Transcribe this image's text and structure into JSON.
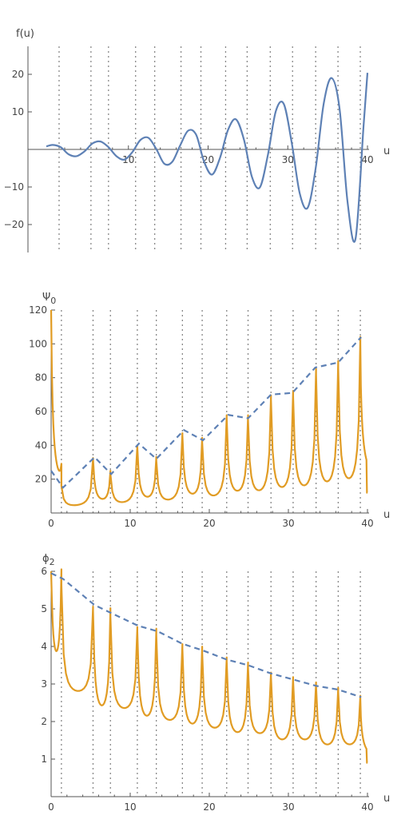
{
  "chart_data": [
    {
      "type": "line",
      "ylabel": "f(u)",
      "xlabel": "u",
      "xlim": [
        -3,
        40.5
      ],
      "ylim": [
        -28,
        28
      ],
      "xticks": [
        {
          "value": 10,
          "label": "10"
        },
        {
          "value": 20,
          "label": "20"
        },
        {
          "value": 30,
          "label": "30"
        },
        {
          "value": 40,
          "label": "40"
        }
      ],
      "yticks": [
        {
          "value": -20,
          "label": "−20"
        },
        {
          "value": -10,
          "label": "−10"
        },
        {
          "value": 10,
          "label": "10"
        },
        {
          "value": 20,
          "label": "20"
        }
      ],
      "vertical_dotted_lines": [
        1.3,
        5.3,
        7.5,
        10.9,
        13.3,
        16.6,
        19.1,
        22.2,
        24.9,
        27.8,
        30.6,
        33.5,
        36.3,
        39.1
      ],
      "series": [
        {
          "style": "solid",
          "color": "#5e81b5",
          "x": [
            -0.3,
            0.5,
            1.5,
            2.5,
            3.5,
            4.5,
            5.5,
            6.5,
            7.5,
            8.5,
            9.5,
            10.5,
            11.5,
            12.5,
            13.5,
            14.5,
            15.5,
            16.5,
            17.5,
            18.5,
            19.5,
            20.5,
            21.5,
            22.5,
            23.5,
            24.5,
            25.5,
            26.5,
            27.5,
            28.5,
            29.5,
            30.5,
            31.5,
            32.5,
            33.5,
            34.5,
            35.5,
            36.5,
            37.5,
            38.5,
            39.5,
            40.0
          ],
          "y": [
            0.8,
            1.2,
            0.6,
            -1.3,
            -1.8,
            -0.5,
            1.6,
            2.1,
            0.6,
            -1.8,
            -2.7,
            -0.7,
            2.5,
            3.1,
            0.1,
            -3.8,
            -3.3,
            1.1,
            5.0,
            3.9,
            -3.3,
            -6.7,
            -2.2,
            5.2,
            8.0,
            2.6,
            -7.3,
            -10.1,
            -1.5,
            10.2,
            12.1,
            1.7,
            -11.7,
            -15.5,
            -5.0,
            12.1,
            19.0,
            10.8,
            -14.0,
            -23.8,
            6.0,
            20.4
          ]
        }
      ]
    },
    {
      "type": "line",
      "ylabel": "Ψ",
      "ylabel_sub": "0",
      "xlabel": "u",
      "xlim": [
        -0.8,
        40.5
      ],
      "ylim": [
        0,
        120
      ],
      "xticks": [
        {
          "value": 0,
          "label": "0"
        },
        {
          "value": 10,
          "label": "10"
        },
        {
          "value": 20,
          "label": "20"
        },
        {
          "value": 30,
          "label": "30"
        },
        {
          "value": 40,
          "label": "40"
        }
      ],
      "yticks": [
        {
          "value": 20,
          "label": "20"
        },
        {
          "value": 40,
          "label": "40"
        },
        {
          "value": 60,
          "label": "60"
        },
        {
          "value": 80,
          "label": "80"
        },
        {
          "value": 100,
          "label": "100"
        },
        {
          "value": 120,
          "label": "120"
        }
      ],
      "vertical_dotted_lines": [
        1.3,
        5.3,
        7.5,
        10.9,
        13.3,
        16.6,
        19.1,
        22.2,
        24.9,
        27.8,
        30.6,
        33.5,
        36.3,
        39.1
      ],
      "series": [
        {
          "style": "dashed",
          "color": "#5e81b5",
          "x": [
            0,
            1.5,
            5.5,
            7.6,
            11.1,
            13.3,
            16.8,
            19.2,
            22.4,
            24.9,
            27.8,
            30.5,
            33.4,
            36.3,
            39.2
          ],
          "y": [
            25,
            15,
            33,
            23,
            41,
            32,
            49,
            43,
            58,
            56,
            70,
            71,
            86,
            89,
            104
          ]
        }
      ],
      "spikes": {
        "color": "#e19c24",
        "positions": [
          0,
          1.3,
          5.3,
          7.5,
          10.9,
          13.3,
          16.6,
          19.1,
          22.2,
          24.9,
          27.8,
          30.6,
          33.5,
          36.3,
          39.1
        ],
        "peaks": [
          120,
          16,
          32,
          23,
          39,
          31,
          46,
          42,
          56,
          55,
          67,
          69,
          82,
          86,
          100
        ],
        "troughs": [
          3,
          1.5,
          1.5,
          1.5,
          1.5,
          1.5,
          1.5,
          1.5,
          1.5,
          1.5,
          1.5,
          1.5,
          1.5,
          1.5,
          12
        ]
      }
    },
    {
      "type": "line",
      "ylabel": "ϕ",
      "ylabel_sub": "2",
      "xlabel": "u",
      "xlim": [
        -0.8,
        40.5
      ],
      "ylim": [
        0,
        6
      ],
      "xticks": [
        {
          "value": 0,
          "label": "0"
        },
        {
          "value": 10,
          "label": "10"
        },
        {
          "value": 20,
          "label": "20"
        },
        {
          "value": 30,
          "label": "30"
        },
        {
          "value": 40,
          "label": "40"
        }
      ],
      "yticks": [
        {
          "value": 1,
          "label": "1"
        },
        {
          "value": 2,
          "label": "2"
        },
        {
          "value": 3,
          "label": "3"
        },
        {
          "value": 4,
          "label": "4"
        },
        {
          "value": 5,
          "label": "5"
        },
        {
          "value": 6,
          "label": "6"
        }
      ],
      "vertical_dotted_lines": [
        1.3,
        5.3,
        7.5,
        10.9,
        13.3,
        16.6,
        19.1,
        22.2,
        24.9,
        27.8,
        30.6,
        33.5,
        36.3,
        39.1
      ],
      "series": [
        {
          "style": "dashed",
          "color": "#5e81b5",
          "x": [
            0,
            1.5,
            5.5,
            7.5,
            11,
            13.5,
            16.6,
            19.1,
            22.2,
            24.9,
            27.8,
            30.6,
            33.5,
            36.3,
            39.2
          ],
          "y": [
            5.95,
            5.8,
            5.1,
            4.9,
            4.55,
            4.4,
            4.07,
            3.9,
            3.65,
            3.5,
            3.28,
            3.12,
            2.95,
            2.85,
            2.65
          ]
        }
      ],
      "spikes": {
        "color": "#e19c24",
        "positions": [
          0,
          1.3,
          5.3,
          7.5,
          10.9,
          13.3,
          16.6,
          19.1,
          22.2,
          24.9,
          27.8,
          30.6,
          33.5,
          36.3,
          39.1
        ],
        "peaks": [
          6.0,
          5.65,
          4.95,
          4.8,
          4.4,
          4.3,
          3.95,
          3.85,
          3.6,
          3.45,
          3.2,
          3.08,
          2.95,
          2.8,
          2.6
        ],
        "troughs": [
          2.4,
          2.4,
          1.55,
          1.9,
          1.45,
          1.6,
          1.35,
          1.4,
          1.22,
          1.28,
          1.1,
          1.15,
          1.0,
          1.05,
          0.9
        ]
      }
    }
  ]
}
